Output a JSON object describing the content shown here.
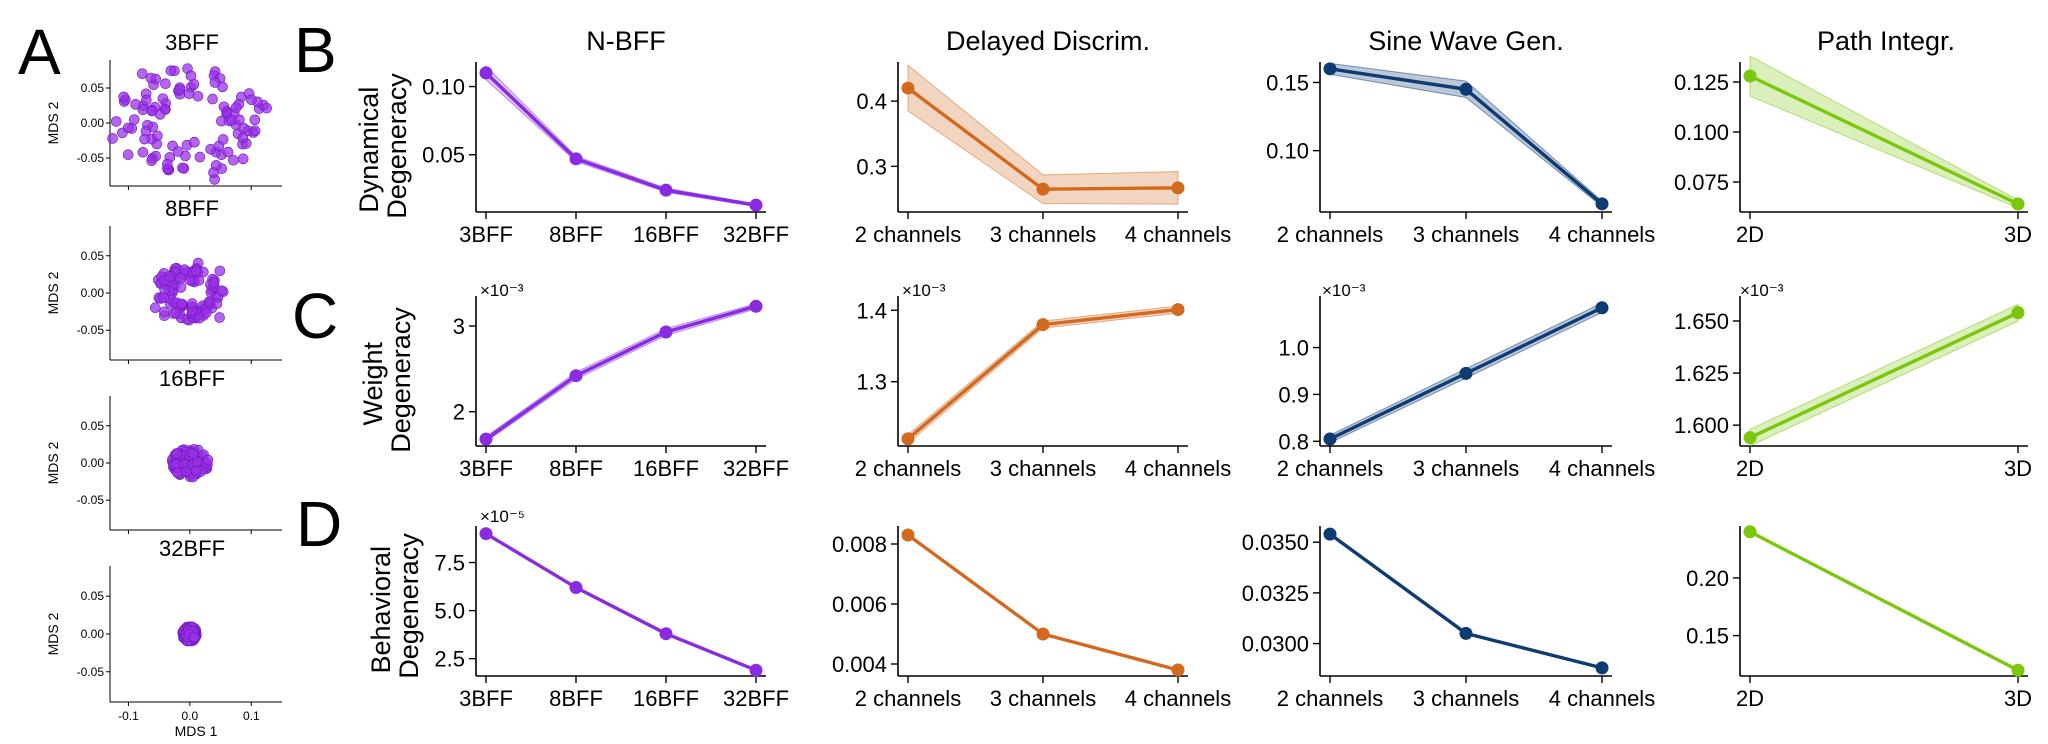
{
  "panel_letters": {
    "a": "A",
    "b": "B",
    "c": "C",
    "d": "D"
  },
  "row_labels": {
    "dynamical": [
      "Dynamical",
      "Degeneracy"
    ],
    "weight": [
      "Weight",
      "Degeneracy"
    ],
    "behavioral": [
      "Behavioral",
      "Degeneracy"
    ]
  },
  "column_titles": [
    "N-BFF",
    "Delayed Discrim.",
    "Sine Wave Gen.",
    "Path Integr."
  ],
  "colors": {
    "nbff": "#8a2be2",
    "delayed": "#d2691e",
    "sine": "#0d3b72",
    "path": "#7ac70c",
    "scatter": "#9b30e8"
  },
  "multipliers": {
    "weight_nbff": "×10⁻³",
    "weight_delayed": "×10⁻³",
    "weight_sine": "×10⁻³",
    "weight_path": "×10⁻³",
    "behavioral_nbff": "×10⁻⁵"
  },
  "chart_data": [
    {
      "id": "mds_3bff",
      "type": "scatter",
      "title": "3BFF",
      "xlabel": "",
      "ylabel": "MDS 2",
      "xlim": [
        -0.13,
        0.15
      ],
      "ylim": [
        -0.09,
        0.09
      ],
      "yticks": [
        "0.05",
        "0.00",
        "-0.05"
      ],
      "ytick_values": [
        0.05,
        0.0,
        -0.05
      ],
      "cluster": "ring",
      "spread": [
        0.13,
        0.08
      ]
    },
    {
      "id": "mds_8bff",
      "type": "scatter",
      "title": "8BFF",
      "xlabel": "",
      "ylabel": "MDS 2",
      "xlim": [
        -0.13,
        0.15
      ],
      "ylim": [
        -0.09,
        0.09
      ],
      "yticks": [
        "0.05",
        "0.00",
        "-0.05"
      ],
      "ytick_values": [
        0.05,
        0.0,
        -0.05
      ],
      "cluster": "ring",
      "spread": [
        0.055,
        0.04
      ]
    },
    {
      "id": "mds_16bff",
      "type": "scatter",
      "title": "16BFF",
      "xlabel": "",
      "ylabel": "MDS 2",
      "xlim": [
        -0.13,
        0.15
      ],
      "ylim": [
        -0.09,
        0.09
      ],
      "yticks": [
        "0.05",
        "0.00",
        "-0.05"
      ],
      "ytick_values": [
        0.05,
        0.0,
        -0.05
      ],
      "cluster": "blob",
      "spread": [
        0.03,
        0.02
      ]
    },
    {
      "id": "mds_32bff",
      "type": "scatter",
      "title": "32BFF",
      "xlabel": "MDS 1",
      "ylabel": "MDS 2",
      "xlim": [
        -0.13,
        0.15
      ],
      "ylim": [
        -0.09,
        0.09
      ],
      "yticks": [
        "0.05",
        "0.00",
        "-0.05"
      ],
      "ytick_values": [
        0.05,
        0.0,
        -0.05
      ],
      "xticks": [
        "-0.1",
        "0.0",
        "0.1"
      ],
      "xtick_values": [
        -0.1,
        0.0,
        0.1
      ],
      "cluster": "dot",
      "spread": [
        0.012,
        0.01
      ]
    },
    {
      "id": "dyn_nbff",
      "type": "line",
      "color_key": "nbff",
      "categories": [
        "3BFF",
        "8BFF",
        "16BFF",
        "32BFF"
      ],
      "values": [
        0.11,
        0.047,
        0.024,
        0.013
      ],
      "band": [
        0.005,
        0.002,
        0.0015,
        0.001
      ],
      "ylim": [
        0.008,
        0.118
      ],
      "yticks": [
        "0.10",
        "0.05"
      ],
      "ytick_values": [
        0.1,
        0.05
      ]
    },
    {
      "id": "dyn_delayed",
      "type": "line",
      "color_key": "delayed",
      "categories": [
        "2 channels",
        "3 channels",
        "4 channels"
      ],
      "values": [
        0.42,
        0.265,
        0.267
      ],
      "band": [
        0.035,
        0.022,
        0.025
      ],
      "ylim": [
        0.23,
        0.46
      ],
      "yticks": [
        "0.4",
        "0.3"
      ],
      "ytick_values": [
        0.4,
        0.3
      ]
    },
    {
      "id": "dyn_sine",
      "type": "line",
      "color_key": "sine",
      "categories": [
        "2 channels",
        "3 channels",
        "4 channels"
      ],
      "values": [
        0.16,
        0.145,
        0.061
      ],
      "band": [
        0.004,
        0.006,
        0.002
      ],
      "ylim": [
        0.055,
        0.165
      ],
      "yticks": [
        "0.15",
        "0.10"
      ],
      "ytick_values": [
        0.15,
        0.1
      ]
    },
    {
      "id": "dyn_path",
      "type": "line",
      "color_key": "path",
      "categories": [
        "2D",
        "3D"
      ],
      "values": [
        0.128,
        0.064
      ],
      "band": [
        0.01,
        0.002
      ],
      "ylim": [
        0.06,
        0.135
      ],
      "yticks": [
        "0.125",
        "0.100",
        "0.075"
      ],
      "ytick_values": [
        0.125,
        0.1,
        0.075
      ]
    },
    {
      "id": "w_nbff",
      "type": "line",
      "color_key": "nbff",
      "categories": [
        "3BFF",
        "8BFF",
        "16BFF",
        "32BFF"
      ],
      "values": [
        1.68,
        2.42,
        2.93,
        3.23
      ],
      "band": [
        0.03,
        0.04,
        0.04,
        0.03
      ],
      "ylim": [
        1.6,
        3.35
      ],
      "yticks": [
        "3",
        "2"
      ],
      "ytick_values": [
        3,
        2
      ]
    },
    {
      "id": "w_delayed",
      "type": "line",
      "color_key": "delayed",
      "categories": [
        "2 channels",
        "3 channels",
        "4 channels"
      ],
      "values": [
        1.22,
        1.38,
        1.401
      ],
      "band": [
        0.006,
        0.005,
        0.005
      ],
      "ylim": [
        1.21,
        1.42
      ],
      "yticks": [
        "1.4",
        "1.3"
      ],
      "ytick_values": [
        1.4,
        1.3
      ]
    },
    {
      "id": "w_sine",
      "type": "line",
      "color_key": "sine",
      "categories": [
        "2 channels",
        "3 channels",
        "4 channels"
      ],
      "values": [
        0.805,
        0.945,
        1.085
      ],
      "band": [
        0.008,
        0.01,
        0.01
      ],
      "ylim": [
        0.79,
        1.11
      ],
      "yticks": [
        "1.0",
        "0.9",
        "0.8"
      ],
      "ytick_values": [
        1.0,
        0.9,
        0.8
      ]
    },
    {
      "id": "w_path",
      "type": "line",
      "color_key": "path",
      "categories": [
        "2D",
        "3D"
      ],
      "values": [
        1.594,
        1.654
      ],
      "band": [
        0.004,
        0.004
      ],
      "ylim": [
        1.59,
        1.662
      ],
      "yticks": [
        "1.650",
        "1.625",
        "1.600"
      ],
      "ytick_values": [
        1.65,
        1.625,
        1.6
      ]
    },
    {
      "id": "b_nbff",
      "type": "line",
      "color_key": "nbff",
      "categories": [
        "3BFF",
        "8BFF",
        "16BFF",
        "32BFF"
      ],
      "values": [
        9.0,
        6.2,
        3.8,
        1.9
      ],
      "band": [
        0,
        0,
        0,
        0
      ],
      "ylim": [
        1.6,
        9.4
      ],
      "yticks": [
        "7.5",
        "5.0",
        "2.5"
      ],
      "ytick_values": [
        7.5,
        5.0,
        2.5
      ]
    },
    {
      "id": "b_delayed",
      "type": "line",
      "color_key": "delayed",
      "categories": [
        "2 channels",
        "3 channels",
        "4 channels"
      ],
      "values": [
        0.0083,
        0.005,
        0.0038
      ],
      "band": [
        0,
        0,
        0
      ],
      "ylim": [
        0.0036,
        0.0086
      ],
      "yticks": [
        "0.008",
        "0.006",
        "0.004"
      ],
      "ytick_values": [
        0.008,
        0.006,
        0.004
      ]
    },
    {
      "id": "b_sine",
      "type": "line",
      "color_key": "sine",
      "categories": [
        "2 channels",
        "3 channels",
        "4 channels"
      ],
      "values": [
        0.0354,
        0.0305,
        0.0288
      ],
      "band": [
        0,
        0,
        0
      ],
      "ylim": [
        0.0284,
        0.0358
      ],
      "yticks": [
        "0.0350",
        "0.0325",
        "0.0300"
      ],
      "ytick_values": [
        0.035,
        0.0325,
        0.03
      ]
    },
    {
      "id": "b_path",
      "type": "line",
      "color_key": "path",
      "categories": [
        "2D",
        "3D"
      ],
      "values": [
        0.24,
        0.12
      ],
      "band": [
        0,
        0
      ],
      "ylim": [
        0.115,
        0.245
      ],
      "yticks": [
        "0.20",
        "0.15"
      ],
      "ytick_values": [
        0.2,
        0.15
      ]
    }
  ]
}
